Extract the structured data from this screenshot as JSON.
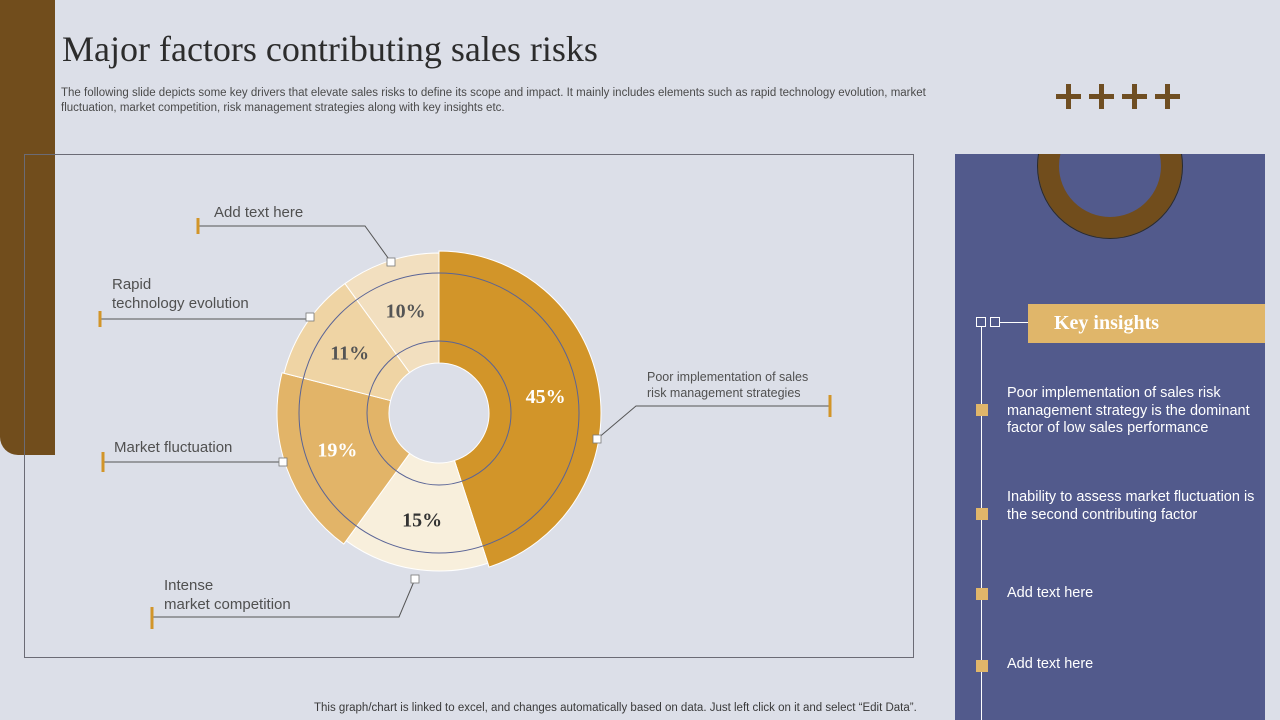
{
  "title": "Major factors contributing sales risks",
  "subtitle": "The following slide depicts some key drivers that elevate sales risks to define its scope and impact. It mainly includes elements such as rapid technology evolution, market fluctuation, market competition, risk management strategies along with key insights etc.",
  "labels": {
    "add_text": "Add text here",
    "rapid_l1": "Rapid",
    "rapid_l2": "technology  evolution",
    "market_fluct": "Market fluctuation",
    "intense_l1": "Intense",
    "intense_l2": "market competition",
    "poor_l1": "Poor implementation of sales",
    "poor_l2": "risk management  strategies"
  },
  "chart_data": {
    "type": "pie",
    "style": "doughnut",
    "categories": [
      "Poor implementation of sales risk management strategies",
      "Intense market competition",
      "Market fluctuation",
      "Rapid technology evolution",
      "Add text here"
    ],
    "values": [
      45,
      15,
      19,
      11,
      10
    ],
    "value_labels": [
      "45%",
      "15%",
      "19%",
      "11%",
      "10%"
    ],
    "colors": [
      "#d29529",
      "#f8efdc",
      "#e2b468",
      "#efd4a4",
      "#f2dfbf"
    ],
    "label_colors": [
      "#ffffff",
      "#333333",
      "#ffffff",
      "#555555",
      "#555555"
    ]
  },
  "insights": {
    "title": "Key insights",
    "items": [
      "Poor implementation of sales risk management strategy is the dominant factor of low sales performance",
      "Inability to assess market fluctuation is the second contributing factor",
      "Add text here",
      "Add text here"
    ]
  },
  "footer": "This graph/chart is linked to excel,  and changes automatically based on data. Just left click on it and select “Edit Data”.",
  "colors": {
    "accent_brown": "#714d1c",
    "panel_blue": "#525a8c",
    "gold": "#e0b66a"
  }
}
